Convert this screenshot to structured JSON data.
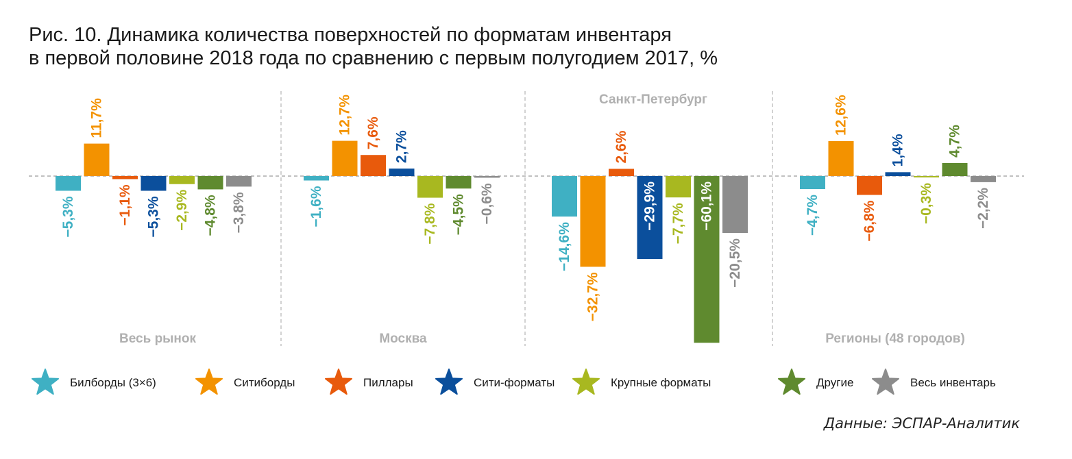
{
  "title_lines": [
    "Рис. 10. Динамика количества поверхностей по форматам инвентаря",
    "в первой половине 2018 года по сравнению с первым полугодием 2017, %"
  ],
  "source": "Данные: ЭСПАР-Аналитик",
  "chart_data": {
    "type": "bar",
    "unit": "%",
    "panels": [
      {
        "name": "Весь рынок",
        "values": [
          -5.3,
          11.7,
          -1.1,
          -5.3,
          -2.9,
          -4.8,
          -3.8
        ],
        "labels": [
          "−5,3%",
          "11,7%",
          "−1,1%",
          "−5,3%",
          "−2,9%",
          "−4,8%",
          "−3,8%"
        ]
      },
      {
        "name": "Москва",
        "values": [
          -1.6,
          12.7,
          7.6,
          2.7,
          -7.8,
          -4.5,
          -0.6
        ],
        "labels": [
          "−1,6%",
          "12,7%",
          "7,6%",
          "2,7%",
          "−7,8%",
          "−4,5%",
          "−0,6%"
        ]
      },
      {
        "name": "Санкт-Петербург",
        "values": [
          -14.6,
          -32.7,
          2.6,
          -29.9,
          -7.7,
          -60.1,
          -20.5
        ],
        "labels": [
          "−14,6%",
          "−32,7%",
          "2,6%",
          "−29,9%",
          "−7,7%",
          "−60,1%",
          "−20,5%"
        ]
      },
      {
        "name": "Регионы (48 городов)",
        "values": [
          -4.7,
          12.6,
          -6.8,
          1.4,
          -0.3,
          4.7,
          -2.2
        ],
        "labels": [
          "−4,7%",
          "12,6%",
          "−6,8%",
          "1,4%",
          "−0,3%",
          "4,7%",
          "−2,2%"
        ]
      }
    ],
    "series": [
      {
        "name": "Билборды (3×6)",
        "color": "#3fb0c3"
      },
      {
        "name": "Ситиборды",
        "color": "#f39200"
      },
      {
        "name": "Пиллары",
        "color": "#e85a0c"
      },
      {
        "name": "Сити-форматы",
        "color": "#0b4f9c"
      },
      {
        "name": "Крупные форматы",
        "color": "#a8b820"
      },
      {
        "name": "Другие",
        "color": "#5f8a2f"
      },
      {
        "name": "Весь инвентарь",
        "color": "#8c8c8c"
      }
    ],
    "ylim": [
      -60.1,
      12.7
    ],
    "legend_position": "bottom",
    "grid": false
  }
}
